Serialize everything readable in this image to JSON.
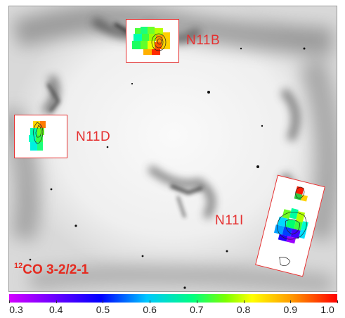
{
  "regions": {
    "n11b": "N11B",
    "n11d": "N11D",
    "n11i": "N11I"
  },
  "caption": {
    "superscript": "12",
    "text": "CO  3-2/2-1"
  },
  "colorbar": {
    "ticks": [
      "0.3",
      "0.4",
      "0.5",
      "0.6",
      "0.7",
      "0.8",
      "0.9",
      "1.0"
    ],
    "range": [
      0.3,
      1.0
    ],
    "colors": [
      "#d400ff",
      "#0000ff",
      "#00c8ff",
      "#00ff80",
      "#ffff00",
      "#ff9a00",
      "#ff0000"
    ]
  },
  "colors": {
    "label": "#e53030",
    "frame": "#e53030"
  }
}
